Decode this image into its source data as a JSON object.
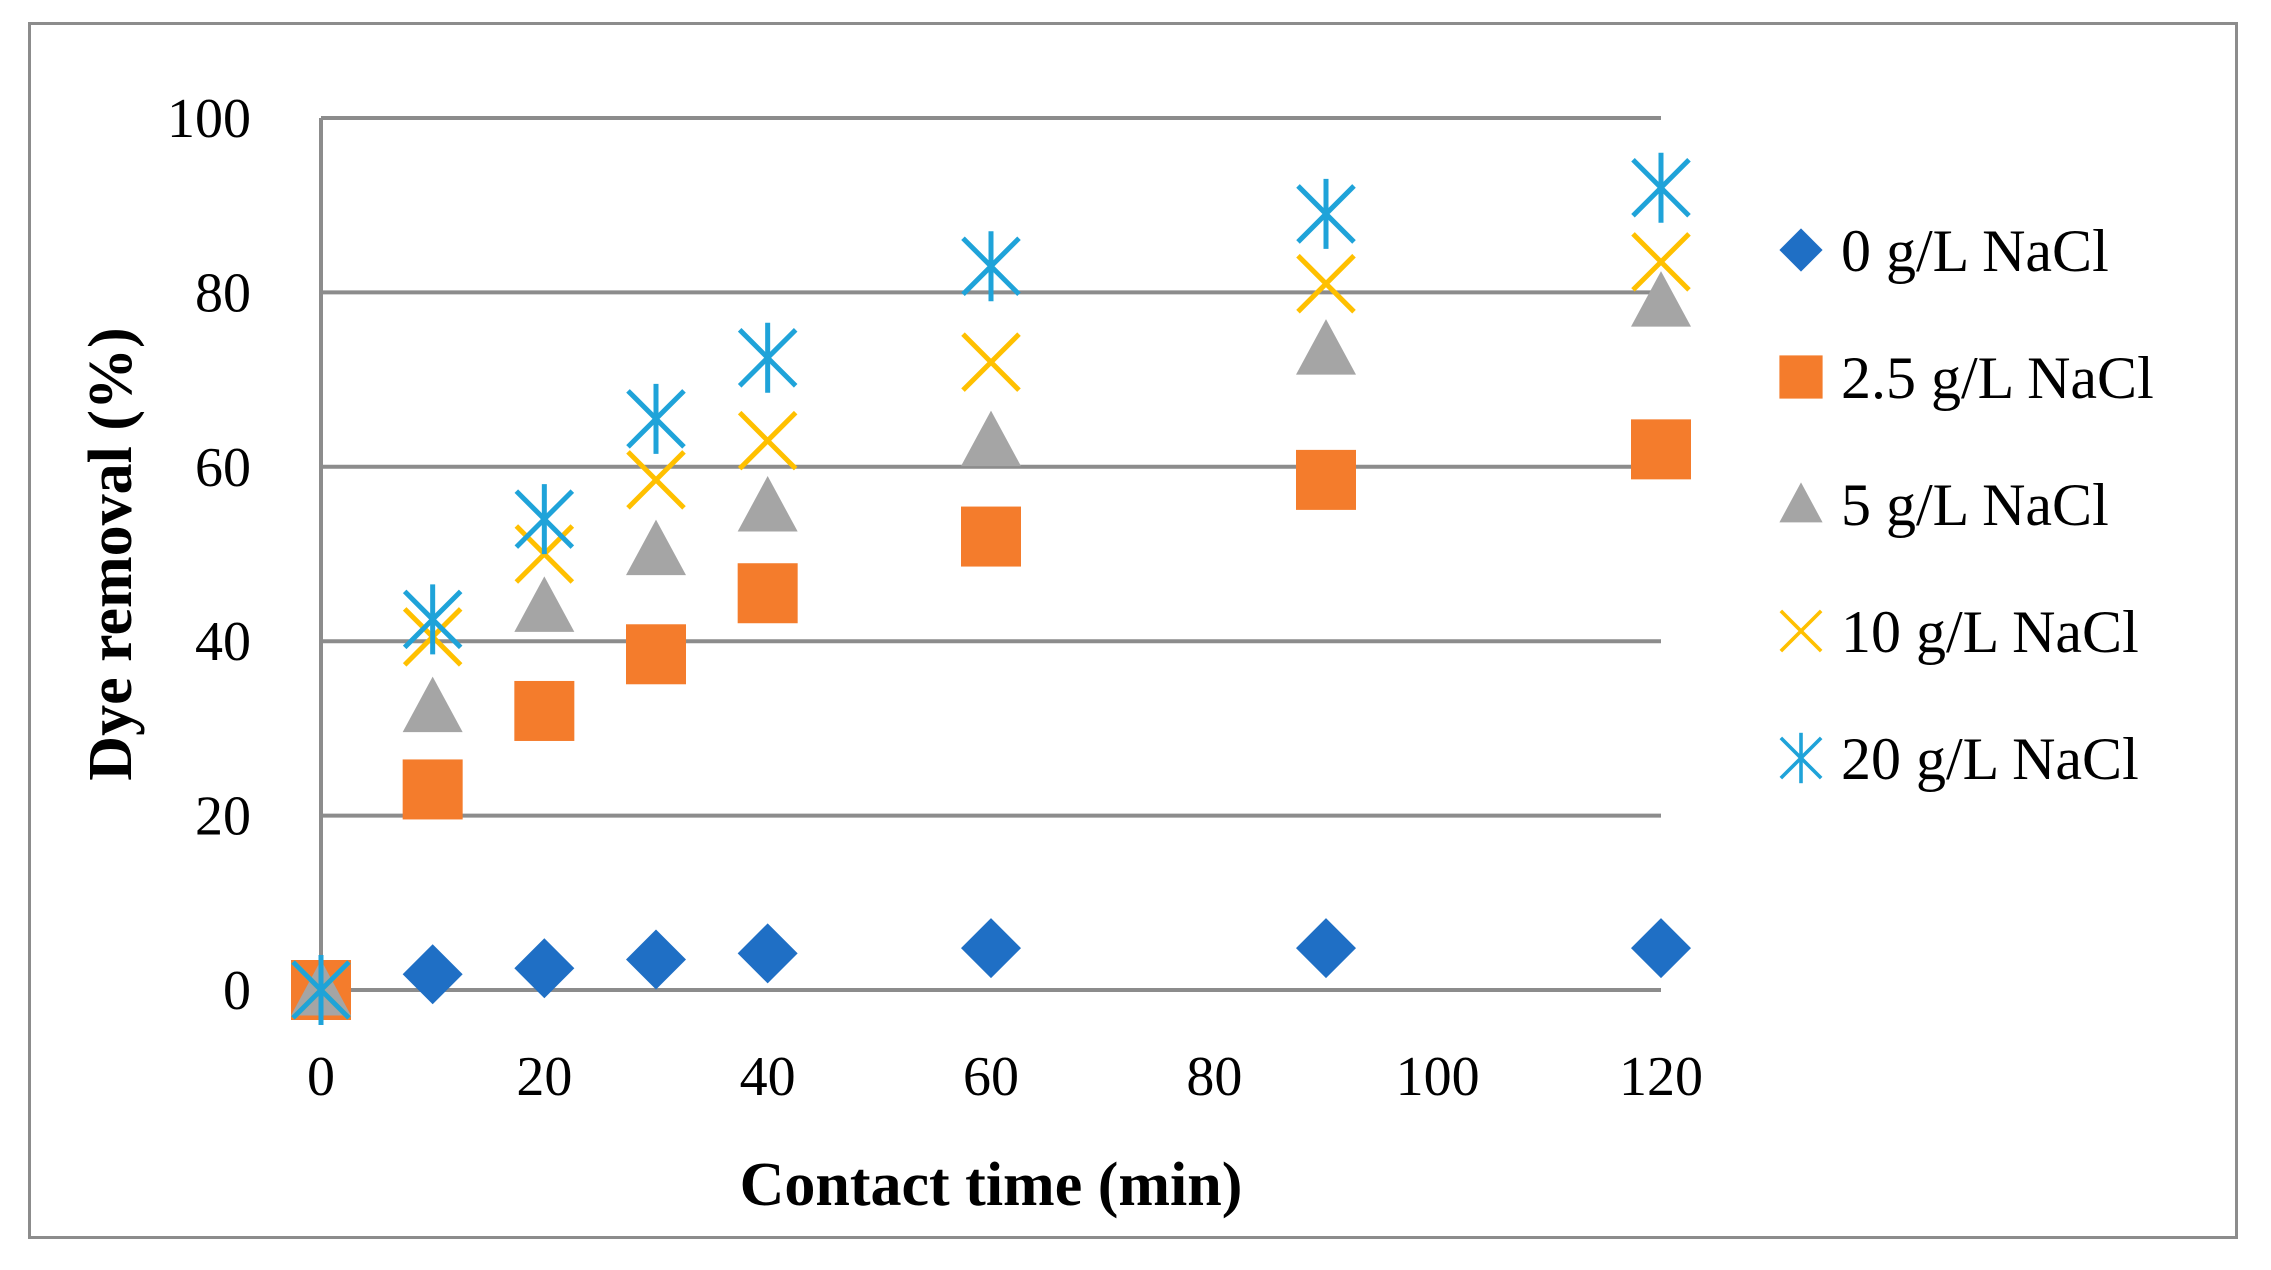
{
  "chart_data": {
    "type": "scatter",
    "title": "",
    "xlabel": "Contact time (min)",
    "ylabel": "Dye removal (%)",
    "xlim": [
      0,
      120
    ],
    "ylim": [
      0,
      100
    ],
    "xticks": [
      0,
      20,
      40,
      60,
      80,
      100,
      120
    ],
    "yticks": [
      0,
      20,
      40,
      60,
      80,
      100
    ],
    "x_tick_labels": [
      "0",
      "20",
      "40",
      "60",
      "80",
      "100",
      "120"
    ],
    "y_tick_labels": [
      "0",
      "20",
      "40",
      "60",
      "80",
      "100"
    ],
    "grid": "horizontal",
    "legend_position": "right",
    "x": [
      0,
      10,
      20,
      30,
      40,
      60,
      90,
      120
    ],
    "series": [
      {
        "name": "0 g/L NaCl",
        "marker": "diamond",
        "color": "#1f6fc5",
        "values": [
          0,
          1.8,
          2.5,
          3.5,
          4.2,
          4.8,
          4.8,
          4.8
        ]
      },
      {
        "name": "2.5 g/L NaCl",
        "marker": "square",
        "color": "#f47c2c",
        "values": [
          0,
          23,
          32,
          38.5,
          45.5,
          52,
          58.5,
          62
        ]
      },
      {
        "name": "5 g/L NaCl",
        "marker": "triangle",
        "color": "#a5a5a5",
        "values": [
          0,
          32.5,
          44,
          50.5,
          55.5,
          63,
          73.5,
          79
        ]
      },
      {
        "name": "10 g/L NaCl",
        "marker": "x",
        "color": "#ffc000",
        "values": [
          0,
          40.5,
          50,
          58.5,
          63,
          72,
          81,
          83.5
        ]
      },
      {
        "name": "20 g/L NaCl",
        "marker": "star",
        "color": "#1fa3d9",
        "values": [
          0,
          42.5,
          54,
          65.5,
          72.5,
          83,
          89,
          92
        ]
      }
    ]
  }
}
